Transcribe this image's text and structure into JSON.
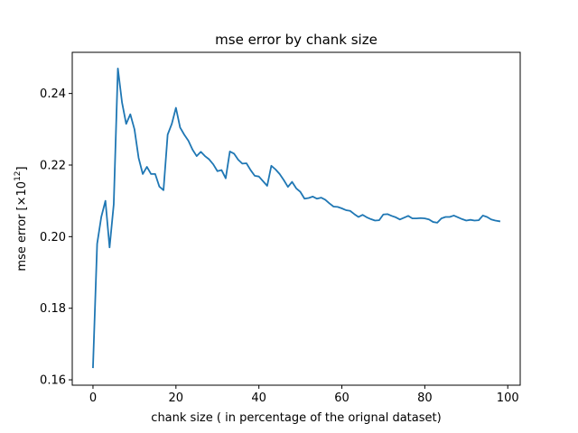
{
  "chart_data": {
    "type": "line",
    "title": "mse error by chank size",
    "xlabel": "chank size ( in percentage of the orignal dataset)",
    "ylabel_main": "mse error [×10",
    "ylabel_exp": "12",
    "ylabel_tail": "]",
    "xlim": [
      -5,
      103
    ],
    "ylim": [
      0.1585,
      0.2515
    ],
    "xticks": [
      0,
      20,
      40,
      60,
      80,
      100
    ],
    "xtick_labels": [
      "0",
      "20",
      "40",
      "60",
      "80",
      "100"
    ],
    "yticks": [
      0.16,
      0.18,
      0.2,
      0.22,
      0.24
    ],
    "ytick_labels": [
      "0.16",
      "0.18",
      "0.20",
      "0.22",
      "0.24"
    ],
    "grid": false,
    "line_color": "#1f77b4",
    "series": [
      {
        "x": [
          0,
          1,
          2,
          3,
          4,
          5,
          6,
          7,
          8,
          9,
          10,
          11,
          12,
          13,
          14,
          15,
          16,
          17,
          18,
          19,
          20,
          21,
          22,
          23,
          24,
          25,
          26,
          27,
          28,
          29,
          30,
          31,
          32,
          33,
          34,
          35,
          36,
          37,
          38,
          39,
          40,
          41,
          42,
          43,
          44,
          45,
          46,
          47,
          48,
          49,
          50,
          51,
          52,
          53,
          54,
          55,
          56,
          57,
          58,
          59,
          60,
          61,
          62,
          63,
          64,
          65,
          66,
          67,
          68,
          69,
          70,
          71,
          72,
          73,
          74,
          75,
          76,
          77,
          78,
          79,
          80,
          81,
          82,
          83,
          84,
          85,
          86,
          87,
          88,
          89,
          90,
          91,
          92,
          93,
          94,
          95,
          96,
          97,
          98
        ],
        "values": [
          0.1635,
          0.198,
          0.2055,
          0.21,
          0.197,
          0.209,
          0.247,
          0.2375,
          0.2315,
          0.2342,
          0.23,
          0.222,
          0.2175,
          0.2195,
          0.2175,
          0.2175,
          0.214,
          0.213,
          0.2285,
          0.2315,
          0.236,
          0.2305,
          0.2285,
          0.2268,
          0.2243,
          0.2225,
          0.2237,
          0.2225,
          0.2216,
          0.2202,
          0.2183,
          0.2186,
          0.2163,
          0.2238,
          0.2232,
          0.2215,
          0.2204,
          0.2205,
          0.2186,
          0.217,
          0.2168,
          0.2155,
          0.2142,
          0.2198,
          0.2188,
          0.2175,
          0.2158,
          0.2139,
          0.2153,
          0.2135,
          0.2125,
          0.2106,
          0.2108,
          0.2112,
          0.2106,
          0.2109,
          0.2103,
          0.2093,
          0.2084,
          0.2083,
          0.2079,
          0.2074,
          0.2072,
          0.2063,
          0.2055,
          0.2061,
          0.2054,
          0.2049,
          0.2045,
          0.2046,
          0.2062,
          0.2063,
          0.2058,
          0.2054,
          0.2048,
          0.2053,
          0.2058,
          0.2051,
          0.2051,
          0.2052,
          0.2051,
          0.2048,
          0.2041,
          0.2039,
          0.2051,
          0.2055,
          0.2055,
          0.2059,
          0.2054,
          0.2049,
          0.2045,
          0.2047,
          0.2045,
          0.2046,
          0.2059,
          0.2055,
          0.2048,
          0.2045,
          0.2043
        ]
      }
    ]
  }
}
